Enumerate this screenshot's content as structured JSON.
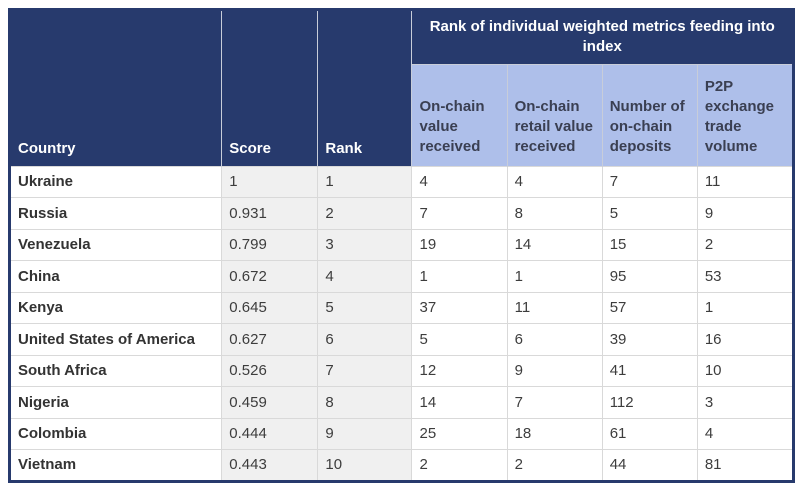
{
  "colors": {
    "header_navy": "#273a6d",
    "subheader_periwinkle": "#aebfea",
    "shaded_cell_gray": "#f0f0f0",
    "cell_border_gray": "#d9d9d9",
    "header_text": "#ffffff",
    "subheader_text": "#3a3f52",
    "data_text": "#3d3d3d"
  },
  "table": {
    "group_header": "Rank of individual weighted metrics feeding into index",
    "columns": {
      "country": "Country",
      "score": "Score",
      "rank": "Rank",
      "metric1": "On-chain value received",
      "metric2": "On-chain retail value received",
      "metric3": "Number of on-chain deposits",
      "metric4": "P2P exchange trade volume"
    },
    "rows": [
      {
        "country": "Ukraine",
        "score": "1",
        "rank": "1",
        "metrics": [
          "4",
          "4",
          "7",
          "11"
        ]
      },
      {
        "country": "Russia",
        "score": "0.931",
        "rank": "2",
        "metrics": [
          "7",
          "8",
          "5",
          "9"
        ]
      },
      {
        "country": "Venezuela",
        "score": "0.799",
        "rank": "3",
        "metrics": [
          "19",
          "14",
          "15",
          "2"
        ]
      },
      {
        "country": "China",
        "score": "0.672",
        "rank": "4",
        "metrics": [
          "1",
          "1",
          "95",
          "53"
        ]
      },
      {
        "country": "Kenya",
        "score": "0.645",
        "rank": "5",
        "metrics": [
          "37",
          "11",
          "57",
          "1"
        ]
      },
      {
        "country": "United States of America",
        "score": "0.627",
        "rank": "6",
        "metrics": [
          "5",
          "6",
          "39",
          "16"
        ]
      },
      {
        "country": "South Africa",
        "score": "0.526",
        "rank": "7",
        "metrics": [
          "12",
          "9",
          "41",
          "10"
        ]
      },
      {
        "country": "Nigeria",
        "score": "0.459",
        "rank": "8",
        "metrics": [
          "14",
          "7",
          "112",
          "3"
        ]
      },
      {
        "country": "Colombia",
        "score": "0.444",
        "rank": "9",
        "metrics": [
          "25",
          "18",
          "61",
          "4"
        ]
      },
      {
        "country": "Vietnam",
        "score": "0.443",
        "rank": "10",
        "metrics": [
          "2",
          "2",
          "44",
          "81"
        ]
      }
    ]
  },
  "chart_data": {
    "type": "table",
    "title": "Rank of individual weighted metrics feeding into index",
    "columns": [
      "Country",
      "Score",
      "Rank",
      "On-chain value received",
      "On-chain retail value received",
      "Number of on-chain deposits",
      "P2P exchange trade volume"
    ],
    "rows": [
      [
        "Ukraine",
        1,
        1,
        4,
        4,
        7,
        11
      ],
      [
        "Russia",
        0.931,
        2,
        7,
        8,
        5,
        9
      ],
      [
        "Venezuela",
        0.799,
        3,
        19,
        14,
        15,
        2
      ],
      [
        "China",
        0.672,
        4,
        1,
        1,
        95,
        53
      ],
      [
        "Kenya",
        0.645,
        5,
        37,
        11,
        57,
        1
      ],
      [
        "United States of America",
        0.627,
        6,
        5,
        6,
        39,
        16
      ],
      [
        "South Africa",
        0.526,
        7,
        12,
        9,
        41,
        10
      ],
      [
        "Nigeria",
        0.459,
        8,
        14,
        7,
        112,
        3
      ],
      [
        "Colombia",
        0.444,
        9,
        25,
        18,
        61,
        4
      ],
      [
        "Vietnam",
        0.443,
        10,
        2,
        2,
        44,
        81
      ]
    ]
  }
}
